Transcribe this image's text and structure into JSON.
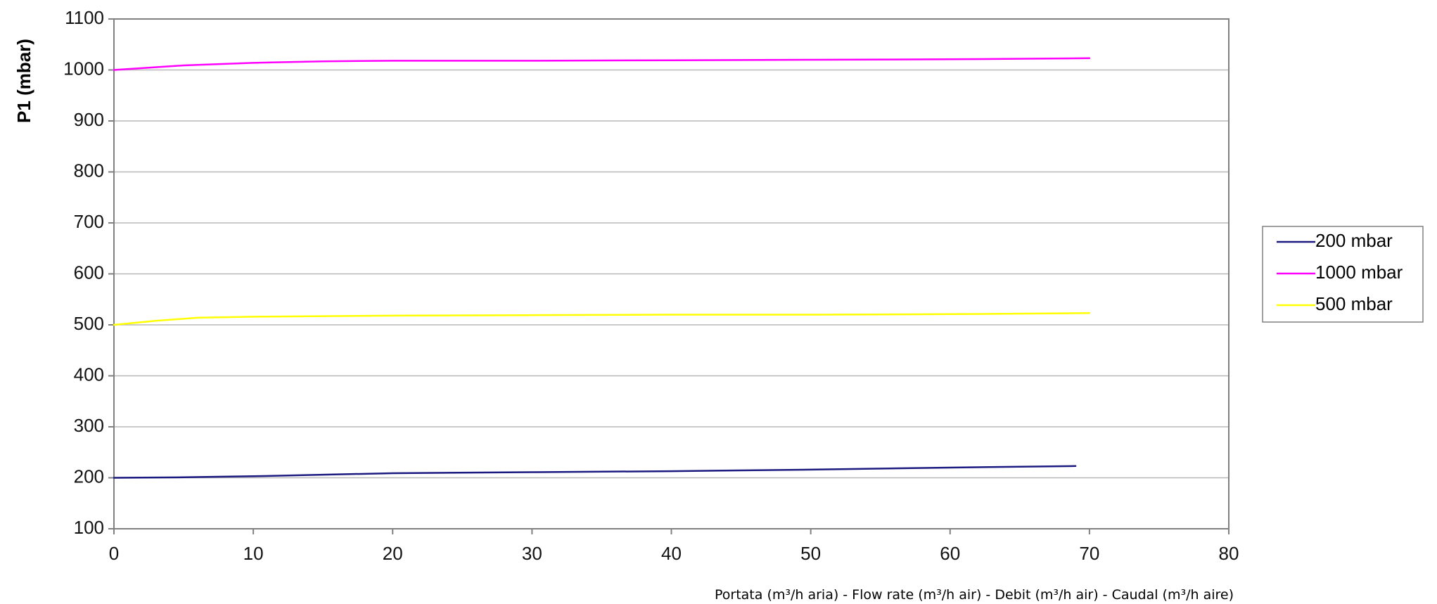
{
  "chart_data": {
    "type": "line",
    "title": "",
    "ylabel": "P1 (mbar)",
    "xlabel": "Portata (m³/h aria) - Flow rate (m³/h air) - Debit (m³/h air) - Caudal (m³/h aire)",
    "xlim": [
      0,
      80
    ],
    "ylim": [
      100,
      1100
    ],
    "xticks": [
      0,
      10,
      20,
      30,
      40,
      50,
      60,
      70,
      80
    ],
    "yticks": [
      100,
      200,
      300,
      400,
      500,
      600,
      700,
      800,
      900,
      1000,
      1100
    ],
    "grid": "horizontal",
    "legend_position": "right",
    "series": [
      {
        "name": "200 mbar",
        "color": "#1a1a80",
        "x": [
          0,
          5,
          10,
          15,
          20,
          30,
          40,
          50,
          60,
          69
        ],
        "y": [
          200,
          201,
          203,
          206,
          209,
          211,
          213,
          216,
          220,
          223
        ]
      },
      {
        "name": "1000 mbar",
        "color": "#ff00ff",
        "x": [
          0,
          5,
          10,
          15,
          20,
          30,
          40,
          50,
          60,
          70
        ],
        "y": [
          1000,
          1009,
          1014,
          1017,
          1018,
          1018,
          1019,
          1020,
          1021,
          1023
        ]
      },
      {
        "name": "500 mbar",
        "color": "#ffff00",
        "x": [
          0,
          3,
          6,
          10,
          20,
          30,
          40,
          50,
          60,
          70
        ],
        "y": [
          500,
          508,
          514,
          516,
          518,
          519,
          520,
          520,
          521,
          523
        ]
      }
    ]
  }
}
